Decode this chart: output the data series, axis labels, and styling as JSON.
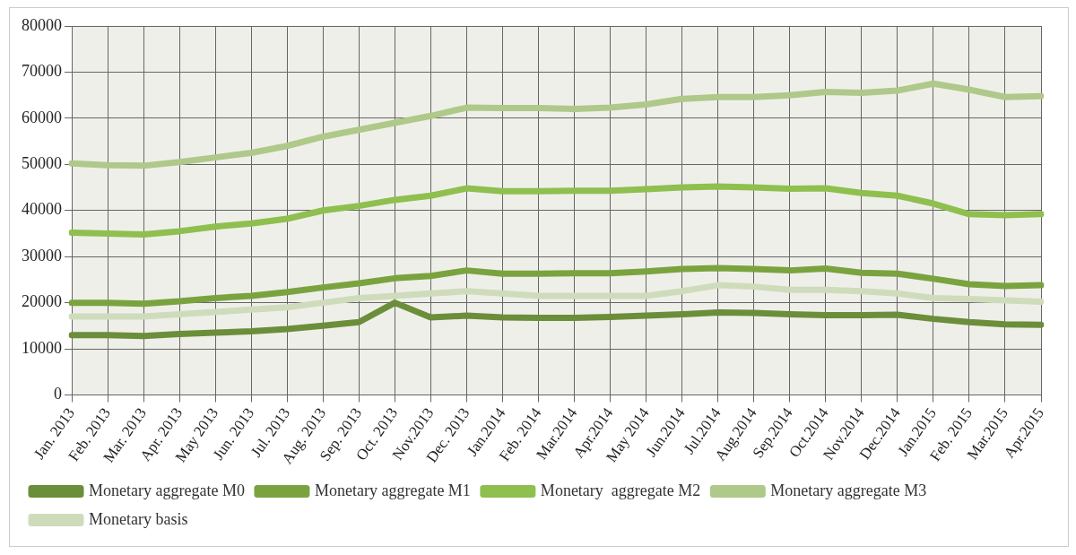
{
  "chart_data": {
    "type": "line",
    "categories": [
      "Jan. 2013",
      "Feb. 2013",
      "Mar. 2013",
      "Apr. 2013",
      "May 2013",
      "Jun. 2013",
      "Jul. 2013",
      "Aug. 2013",
      "Sep. 2013",
      "Oct. 2013",
      "Nov.2013",
      "Dec. 2013",
      "Jan.2014",
      "Feb. 2014",
      "Mar.2014",
      "Apr.2014",
      "May 2014",
      "Jun.2014",
      "Jul.2014",
      "Aug.2014",
      "Sep.2014",
      "Oct.2014",
      "Nov.2014",
      "Dec.2014",
      "Jan.2015",
      "Feb. 2015",
      "Mar.2015",
      "Apr.2015"
    ],
    "series": [
      {
        "name": "Monetary aggregate M0",
        "color": "#6b8e3a",
        "values": [
          13000,
          13000,
          12800,
          13200,
          13500,
          13800,
          14300,
          15000,
          15800,
          20000,
          16800,
          17200,
          16800,
          16700,
          16700,
          16900,
          17200,
          17500,
          17900,
          17800,
          17500,
          17300,
          17300,
          17400,
          16500,
          15800,
          15300,
          15200
        ]
      },
      {
        "name": "Monetary aggregate M1",
        "color": "#7aa33f",
        "values": [
          20000,
          20000,
          19800,
          20300,
          21000,
          21500,
          22300,
          23300,
          24200,
          25300,
          25800,
          27000,
          26300,
          26300,
          26400,
          26400,
          26800,
          27300,
          27500,
          27300,
          27000,
          27400,
          26500,
          26300,
          25200,
          24000,
          23600,
          23800
        ]
      },
      {
        "name": "Monetary  aggregate M2",
        "color": "#8fbf4f",
        "values": [
          35200,
          35000,
          34800,
          35500,
          36500,
          37200,
          38200,
          40000,
          41000,
          42300,
          43200,
          44800,
          44200,
          44200,
          44300,
          44300,
          44600,
          45000,
          45200,
          45000,
          44700,
          44800,
          43800,
          43200,
          41500,
          39200,
          39000,
          39200
        ]
      },
      {
        "name": "Monetary aggregate M3",
        "color": "#aec98a",
        "values": [
          50200,
          49800,
          49700,
          50500,
          51500,
          52500,
          54000,
          56000,
          57500,
          59000,
          60500,
          62300,
          62200,
          62200,
          62000,
          62300,
          63000,
          64200,
          64600,
          64600,
          65000,
          65700,
          65500,
          66000,
          67500,
          66200,
          64600,
          64800
        ]
      },
      {
        "name": "Monetary basis",
        "color": "#cfdcbc",
        "values": [
          17000,
          17000,
          17000,
          17500,
          18000,
          18500,
          19000,
          20000,
          21000,
          21500,
          22000,
          22500,
          22000,
          21500,
          21500,
          21500,
          21500,
          22500,
          23800,
          23500,
          22800,
          22800,
          22500,
          22000,
          21000,
          20800,
          20500,
          20200
        ]
      }
    ],
    "ylim": [
      0,
      80000
    ],
    "yticks": [
      0,
      10000,
      20000,
      30000,
      40000,
      50000,
      60000,
      70000,
      80000
    ],
    "grid": true,
    "legend": "bottom",
    "marker": "none",
    "line_style": "solid"
  }
}
